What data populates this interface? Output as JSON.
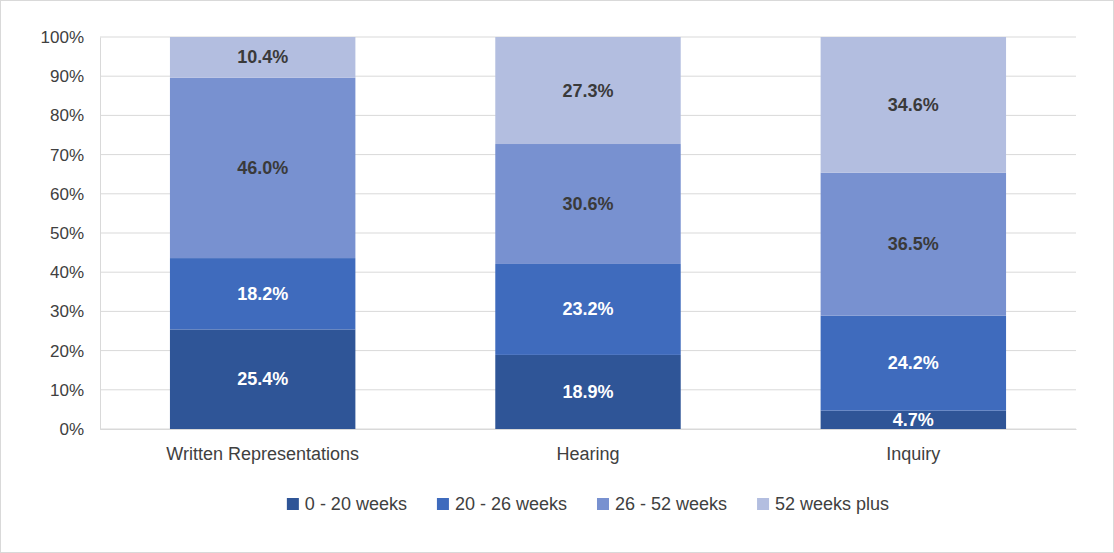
{
  "chart_data": {
    "type": "bar",
    "stacked": true,
    "data_labels": true,
    "grid": true,
    "legend": "bottom",
    "categories": [
      "Written Representations",
      "Hearing",
      "Inquiry"
    ],
    "series": [
      {
        "name": "0 - 20 weeks",
        "color": "#2f5597",
        "values": [
          25.4,
          18.9,
          4.7
        ],
        "value_labels": [
          "25.4%",
          "18.9%",
          "4.7%"
        ]
      },
      {
        "name": "20 - 26 weeks",
        "color": "#3f6bbd",
        "values": [
          18.2,
          23.2,
          24.2
        ],
        "value_labels": [
          "18.2%",
          "23.2%",
          "24.2%"
        ]
      },
      {
        "name": "26 - 52 weeks",
        "color": "#7891d0",
        "values": [
          46.0,
          30.6,
          36.5
        ],
        "value_labels": [
          "46.0%",
          "30.6%",
          "36.5%"
        ]
      },
      {
        "name": "52 weeks plus",
        "color": "#b3bee0",
        "values": [
          10.4,
          27.3,
          34.6
        ],
        "value_labels": [
          "10.4%",
          "27.3%",
          "34.6%"
        ]
      }
    ],
    "ylim": [
      0,
      100
    ],
    "yticks": [
      {
        "value": 0,
        "label": "0%"
      },
      {
        "value": 10,
        "label": "10%"
      },
      {
        "value": 20,
        "label": "20%"
      },
      {
        "value": 30,
        "label": "30%"
      },
      {
        "value": 40,
        "label": "40%"
      },
      {
        "value": 50,
        "label": "50%"
      },
      {
        "value": 60,
        "label": "60%"
      },
      {
        "value": 70,
        "label": "70%"
      },
      {
        "value": 80,
        "label": "80%"
      },
      {
        "value": 90,
        "label": "90%"
      },
      {
        "value": 100,
        "label": "100%"
      }
    ]
  }
}
